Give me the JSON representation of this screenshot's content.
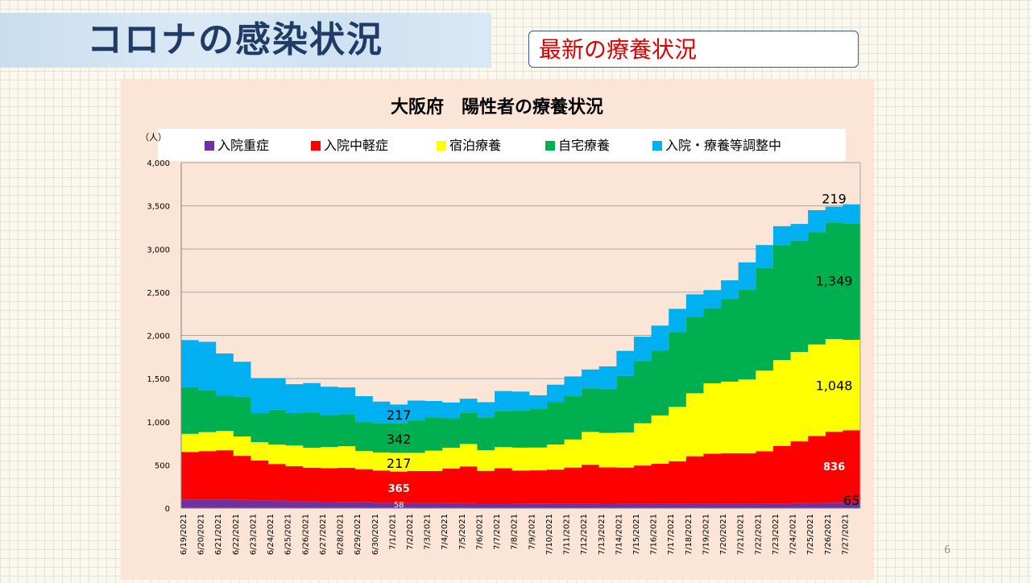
{
  "slide": {
    "title": "コロナの感染状況",
    "subtitle": "最新の療養状況",
    "page_number": "6"
  },
  "colors": {
    "severe": "#7030a0",
    "mild": "#ff0000",
    "hotel": "#ffff00",
    "home": "#00b050",
    "adjusting": "#00b0f0"
  },
  "chart_data": {
    "type": "area",
    "stacked": true,
    "title": "大阪府　陽性者の療養状況",
    "ylabel": "（人）",
    "ylim": [
      0,
      4000
    ],
    "yticks": [
      "0",
      "500",
      "1,000",
      "1,500",
      "2,000",
      "2,500",
      "3,000",
      "3,500",
      "4,000"
    ],
    "yticks_values": [
      0,
      500,
      1000,
      1500,
      2000,
      2500,
      3000,
      3500,
      4000
    ],
    "grid": true,
    "legend_position": "top",
    "categories": [
      "6/19/2021",
      "6/20/2021",
      "6/21/2021",
      "6/22/2021",
      "6/23/2021",
      "6/24/2021",
      "6/25/2021",
      "6/26/2021",
      "6/27/2021",
      "6/28/2021",
      "6/29/2021",
      "6/30/2021",
      "7/1/2021",
      "7/2/2021",
      "7/3/2021",
      "7/4/2021",
      "7/5/2021",
      "7/6/2021",
      "7/7/2021",
      "7/8/2021",
      "7/9/2021",
      "7/10/2021",
      "7/11/2021",
      "7/12/2021",
      "7/13/2021",
      "7/14/2021",
      "7/15/2021",
      "7/16/2021",
      "7/17/2021",
      "7/18/2021",
      "7/19/2021",
      "7/20/2021",
      "7/21/2021",
      "7/22/2021",
      "7/23/2021",
      "7/24/2021",
      "7/25/2021",
      "7/26/2021",
      "7/27/2021"
    ],
    "series": [
      {
        "name": "入院重症",
        "color": "#7030a0",
        "values": [
          100,
          100,
          100,
          95,
          90,
          85,
          80,
          78,
          75,
          72,
          68,
          62,
          58,
          60,
          60,
          58,
          57,
          56,
          56,
          55,
          54,
          53,
          52,
          52,
          51,
          50,
          50,
          50,
          50,
          50,
          50,
          50,
          50,
          52,
          55,
          58,
          60,
          63,
          65
        ]
      },
      {
        "name": "入院中軽症",
        "color": "#ff0000",
        "values": [
          550,
          560,
          570,
          510,
          460,
          425,
          405,
          390,
          388,
          395,
          383,
          373,
          365,
          370,
          370,
          400,
          425,
          375,
          405,
          380,
          383,
          393,
          418,
          450,
          420,
          420,
          443,
          463,
          493,
          550,
          580,
          585,
          585,
          605,
          665,
          715,
          775,
          820,
          836
        ]
      },
      {
        "name": "宿泊療養",
        "color": "#ffff00",
        "values": [
          210,
          220,
          225,
          225,
          215,
          225,
          240,
          230,
          245,
          250,
          210,
          210,
          217,
          210,
          235,
          240,
          260,
          240,
          245,
          265,
          265,
          290,
          325,
          380,
          400,
          405,
          490,
          560,
          630,
          730,
          815,
          830,
          855,
          935,
          995,
          1035,
          1060,
          1075,
          1048
        ]
      },
      {
        "name": "自宅療養",
        "color": "#00b050",
        "values": [
          540,
          485,
          410,
          460,
          335,
          405,
          375,
          410,
          370,
          370,
          335,
          338,
          342,
          375,
          385,
          345,
          365,
          380,
          420,
          430,
          445,
          490,
          505,
          505,
          510,
          655,
          720,
          750,
          865,
          880,
          870,
          960,
          1040,
          1190,
          1330,
          1290,
          1300,
          1350,
          1349
        ]
      },
      {
        "name": "入院・療養等調整中",
        "color": "#00b0f0",
        "values": [
          545,
          560,
          485,
          405,
          405,
          365,
          335,
          340,
          327,
          310,
          300,
          250,
          217,
          230,
          190,
          180,
          160,
          175,
          230,
          220,
          160,
          203,
          225,
          218,
          260,
          290,
          282,
          290,
          270,
          265,
          210,
          213,
          315,
          265,
          220,
          192,
          255,
          183,
          219
        ]
      }
    ],
    "annotations": [
      {
        "text": "58",
        "x": "7/1/2021",
        "y": 40,
        "color": "#ffffff",
        "size": "small"
      },
      {
        "text": "365",
        "x": "7/1/2021",
        "y": 230,
        "color": "#ffffff",
        "size": "medium"
      },
      {
        "text": "217",
        "x": "7/1/2021",
        "y": 520,
        "color": "#000000",
        "size": "large"
      },
      {
        "text": "342",
        "x": "7/1/2021",
        "y": 800,
        "color": "#000000",
        "size": "large"
      },
      {
        "text": "217",
        "x": "7/1/2021",
        "y": 1080,
        "color": "#000000",
        "size": "large"
      },
      {
        "text": "65",
        "x": "7/27/2021",
        "y": 90,
        "color": "#000000",
        "size": "large"
      },
      {
        "text": "836",
        "x": "7/26/2021",
        "y": 480,
        "color": "#ffffff",
        "size": "medium"
      },
      {
        "text": "1,048",
        "x": "7/26/2021",
        "y": 1420,
        "color": "#000000",
        "size": "large"
      },
      {
        "text": "1,349",
        "x": "7/26/2021",
        "y": 2630,
        "color": "#000000",
        "size": "large"
      },
      {
        "text": "219",
        "x": "7/26/2021",
        "y": 3580,
        "color": "#000000",
        "size": "large"
      }
    ]
  }
}
